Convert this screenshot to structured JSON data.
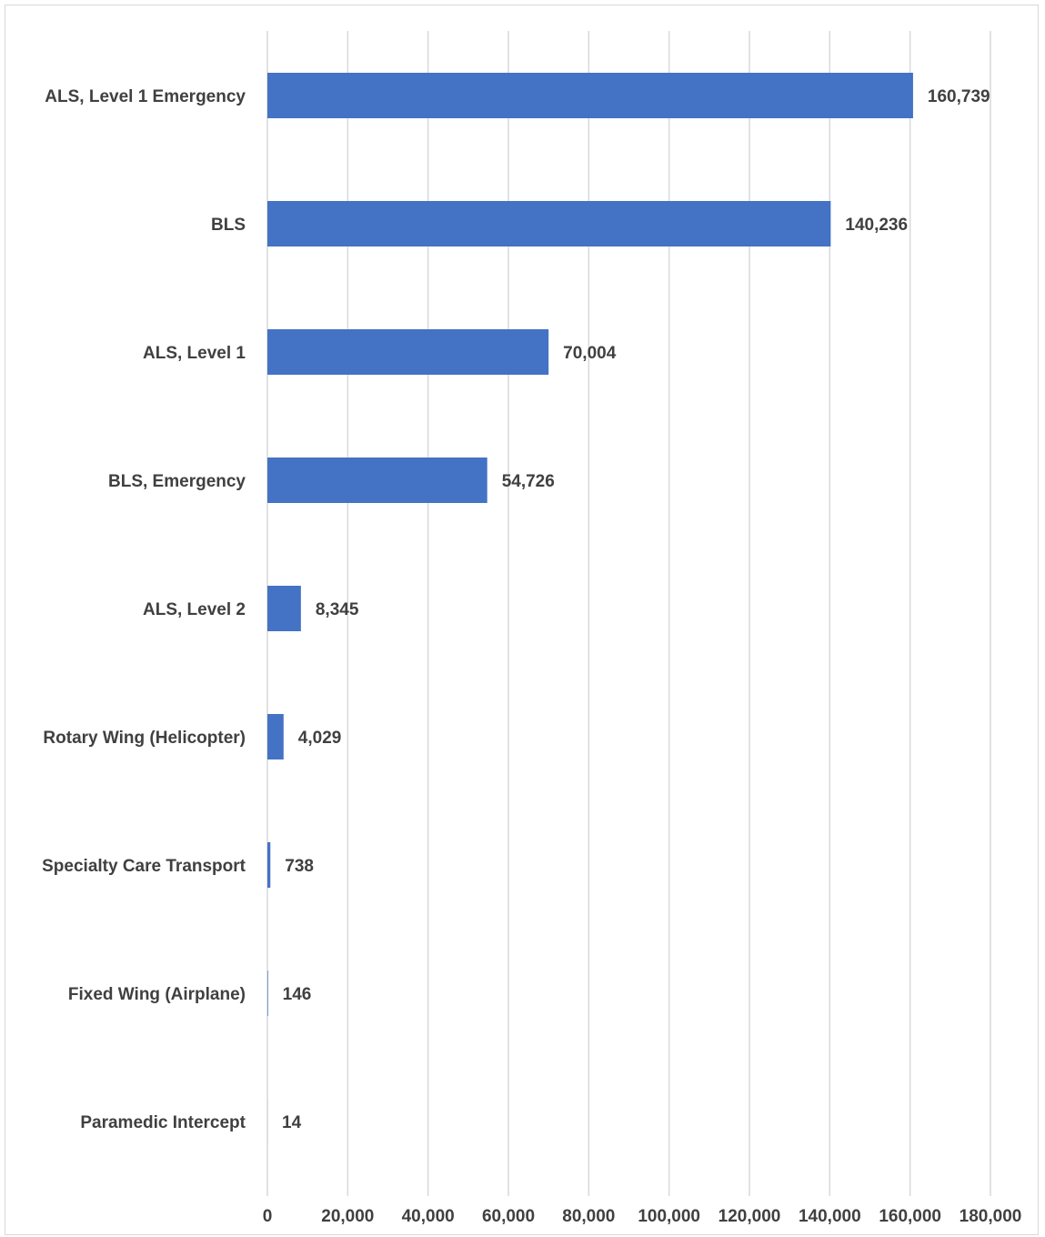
{
  "chart_data": {
    "type": "bar",
    "orientation": "horizontal",
    "categories": [
      "ALS, Level 1 Emergency",
      "BLS",
      "ALS, Level 1",
      "BLS, Emergency",
      "ALS, Level 2",
      "Rotary Wing (Helicopter)",
      "Specialty Care Transport",
      "Fixed Wing (Airplane)",
      "Paramedic Intercept"
    ],
    "values": [
      160739,
      140236,
      70004,
      54726,
      8345,
      4029,
      738,
      146,
      14
    ],
    "value_labels": [
      "160,739",
      "140,236",
      "70,004",
      "54,726",
      "8,345",
      "4,029",
      "738",
      "146",
      "14"
    ],
    "xlim": [
      0,
      180000
    ],
    "x_ticks": [
      0,
      20000,
      40000,
      60000,
      80000,
      100000,
      120000,
      140000,
      160000,
      180000
    ],
    "x_tick_labels": [
      "0",
      "20,000",
      "40,000",
      "60,000",
      "80,000",
      "100,000",
      "120,000",
      "140,000",
      "160,000",
      "180,000"
    ],
    "grid": true,
    "title": "",
    "xlabel": "",
    "ylabel": "",
    "bar_color": "#4472c4",
    "grid_color": "#d9d9d9",
    "text_color": "#404040"
  }
}
